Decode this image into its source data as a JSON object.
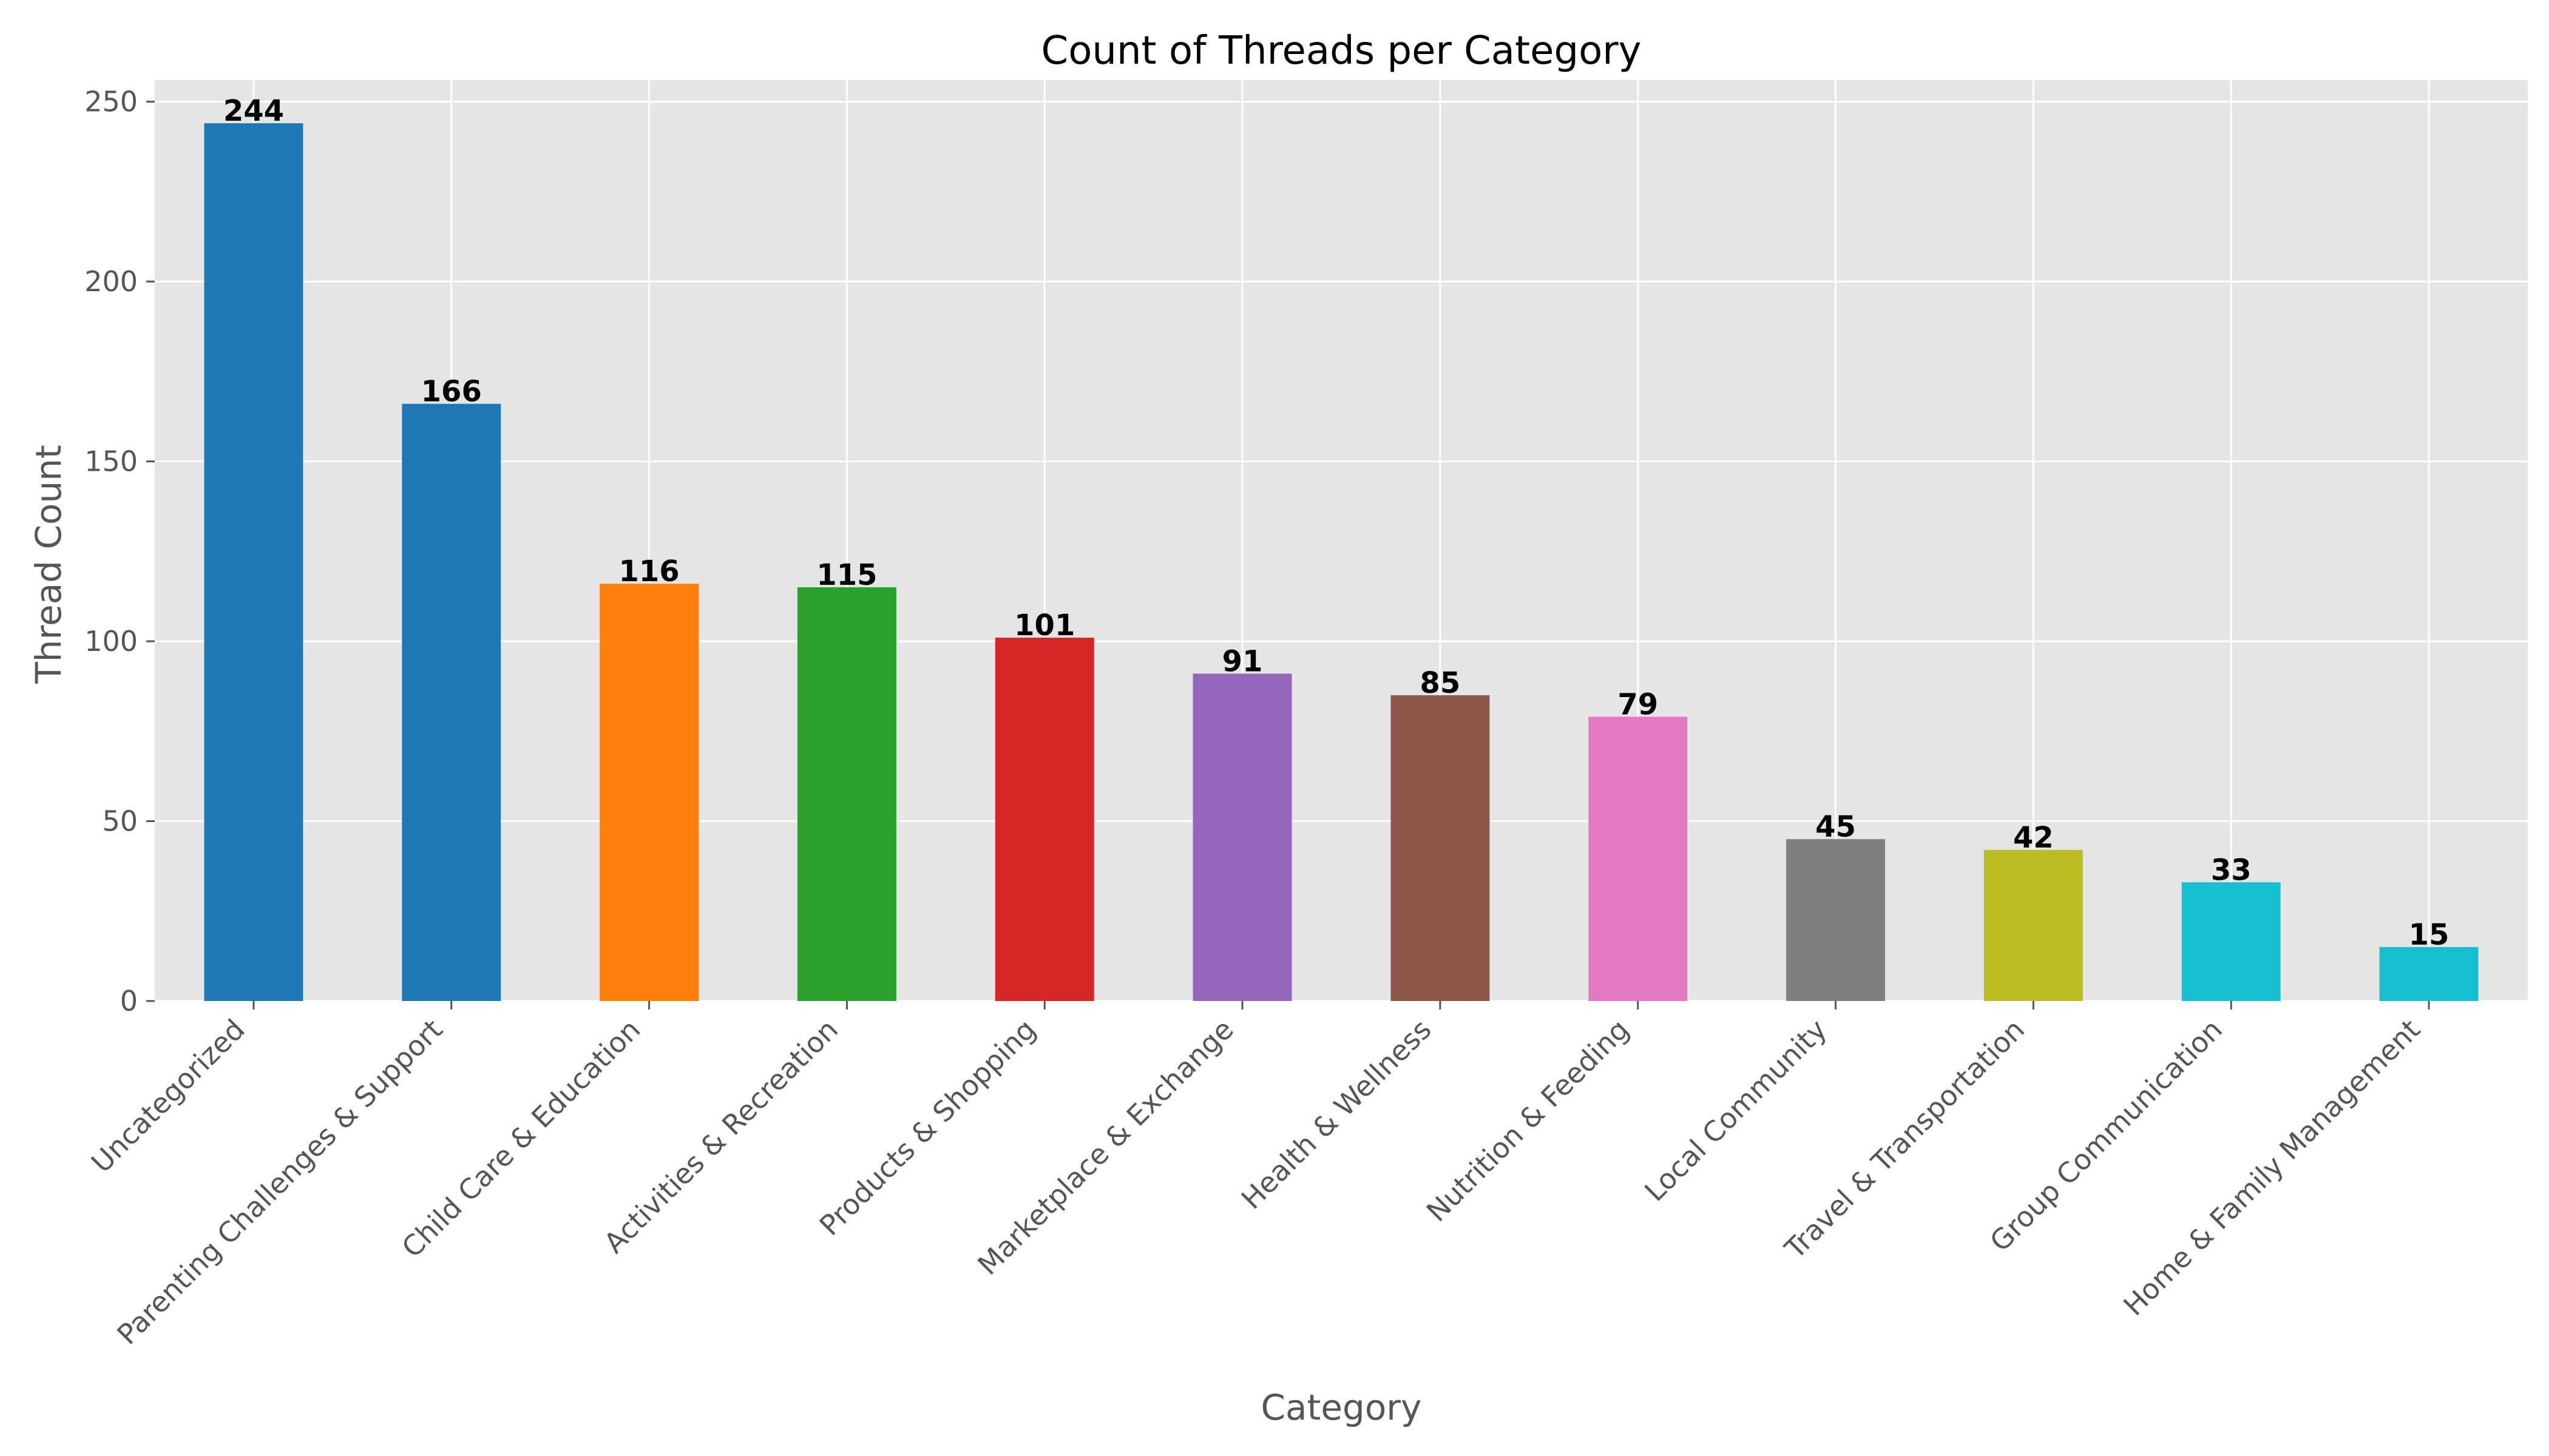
{
  "chart_data": {
    "type": "bar",
    "title": "Count of Threads per Category",
    "xlabel": "Category",
    "ylabel": "Thread Count",
    "ylim": [
      0,
      256
    ],
    "yticks": [
      0,
      50,
      100,
      150,
      200,
      250
    ],
    "grid": true,
    "legend": "none",
    "categories": [
      "Uncategorized",
      "Parenting Challenges & Support",
      "Child Care & Education",
      "Activities & Recreation",
      "Products & Shopping",
      "Marketplace & Exchange",
      "Health & Wellness",
      "Nutrition & Feeding",
      "Local Community",
      "Travel & Transportation",
      "Group Communication",
      "Home & Family Management"
    ],
    "values": [
      244,
      166,
      116,
      115,
      101,
      91,
      85,
      79,
      45,
      42,
      33,
      15
    ],
    "colors": [
      "#1f77b4",
      "#1f77b4",
      "#ff7f0e",
      "#2ca02c",
      "#d62728",
      "#9467bd",
      "#8c564b",
      "#e377c2",
      "#7f7f7f",
      "#bcbd22",
      "#17becf",
      "#17becf"
    ],
    "plot_background": "#e5e5e5",
    "grid_color": "#ffffff"
  }
}
